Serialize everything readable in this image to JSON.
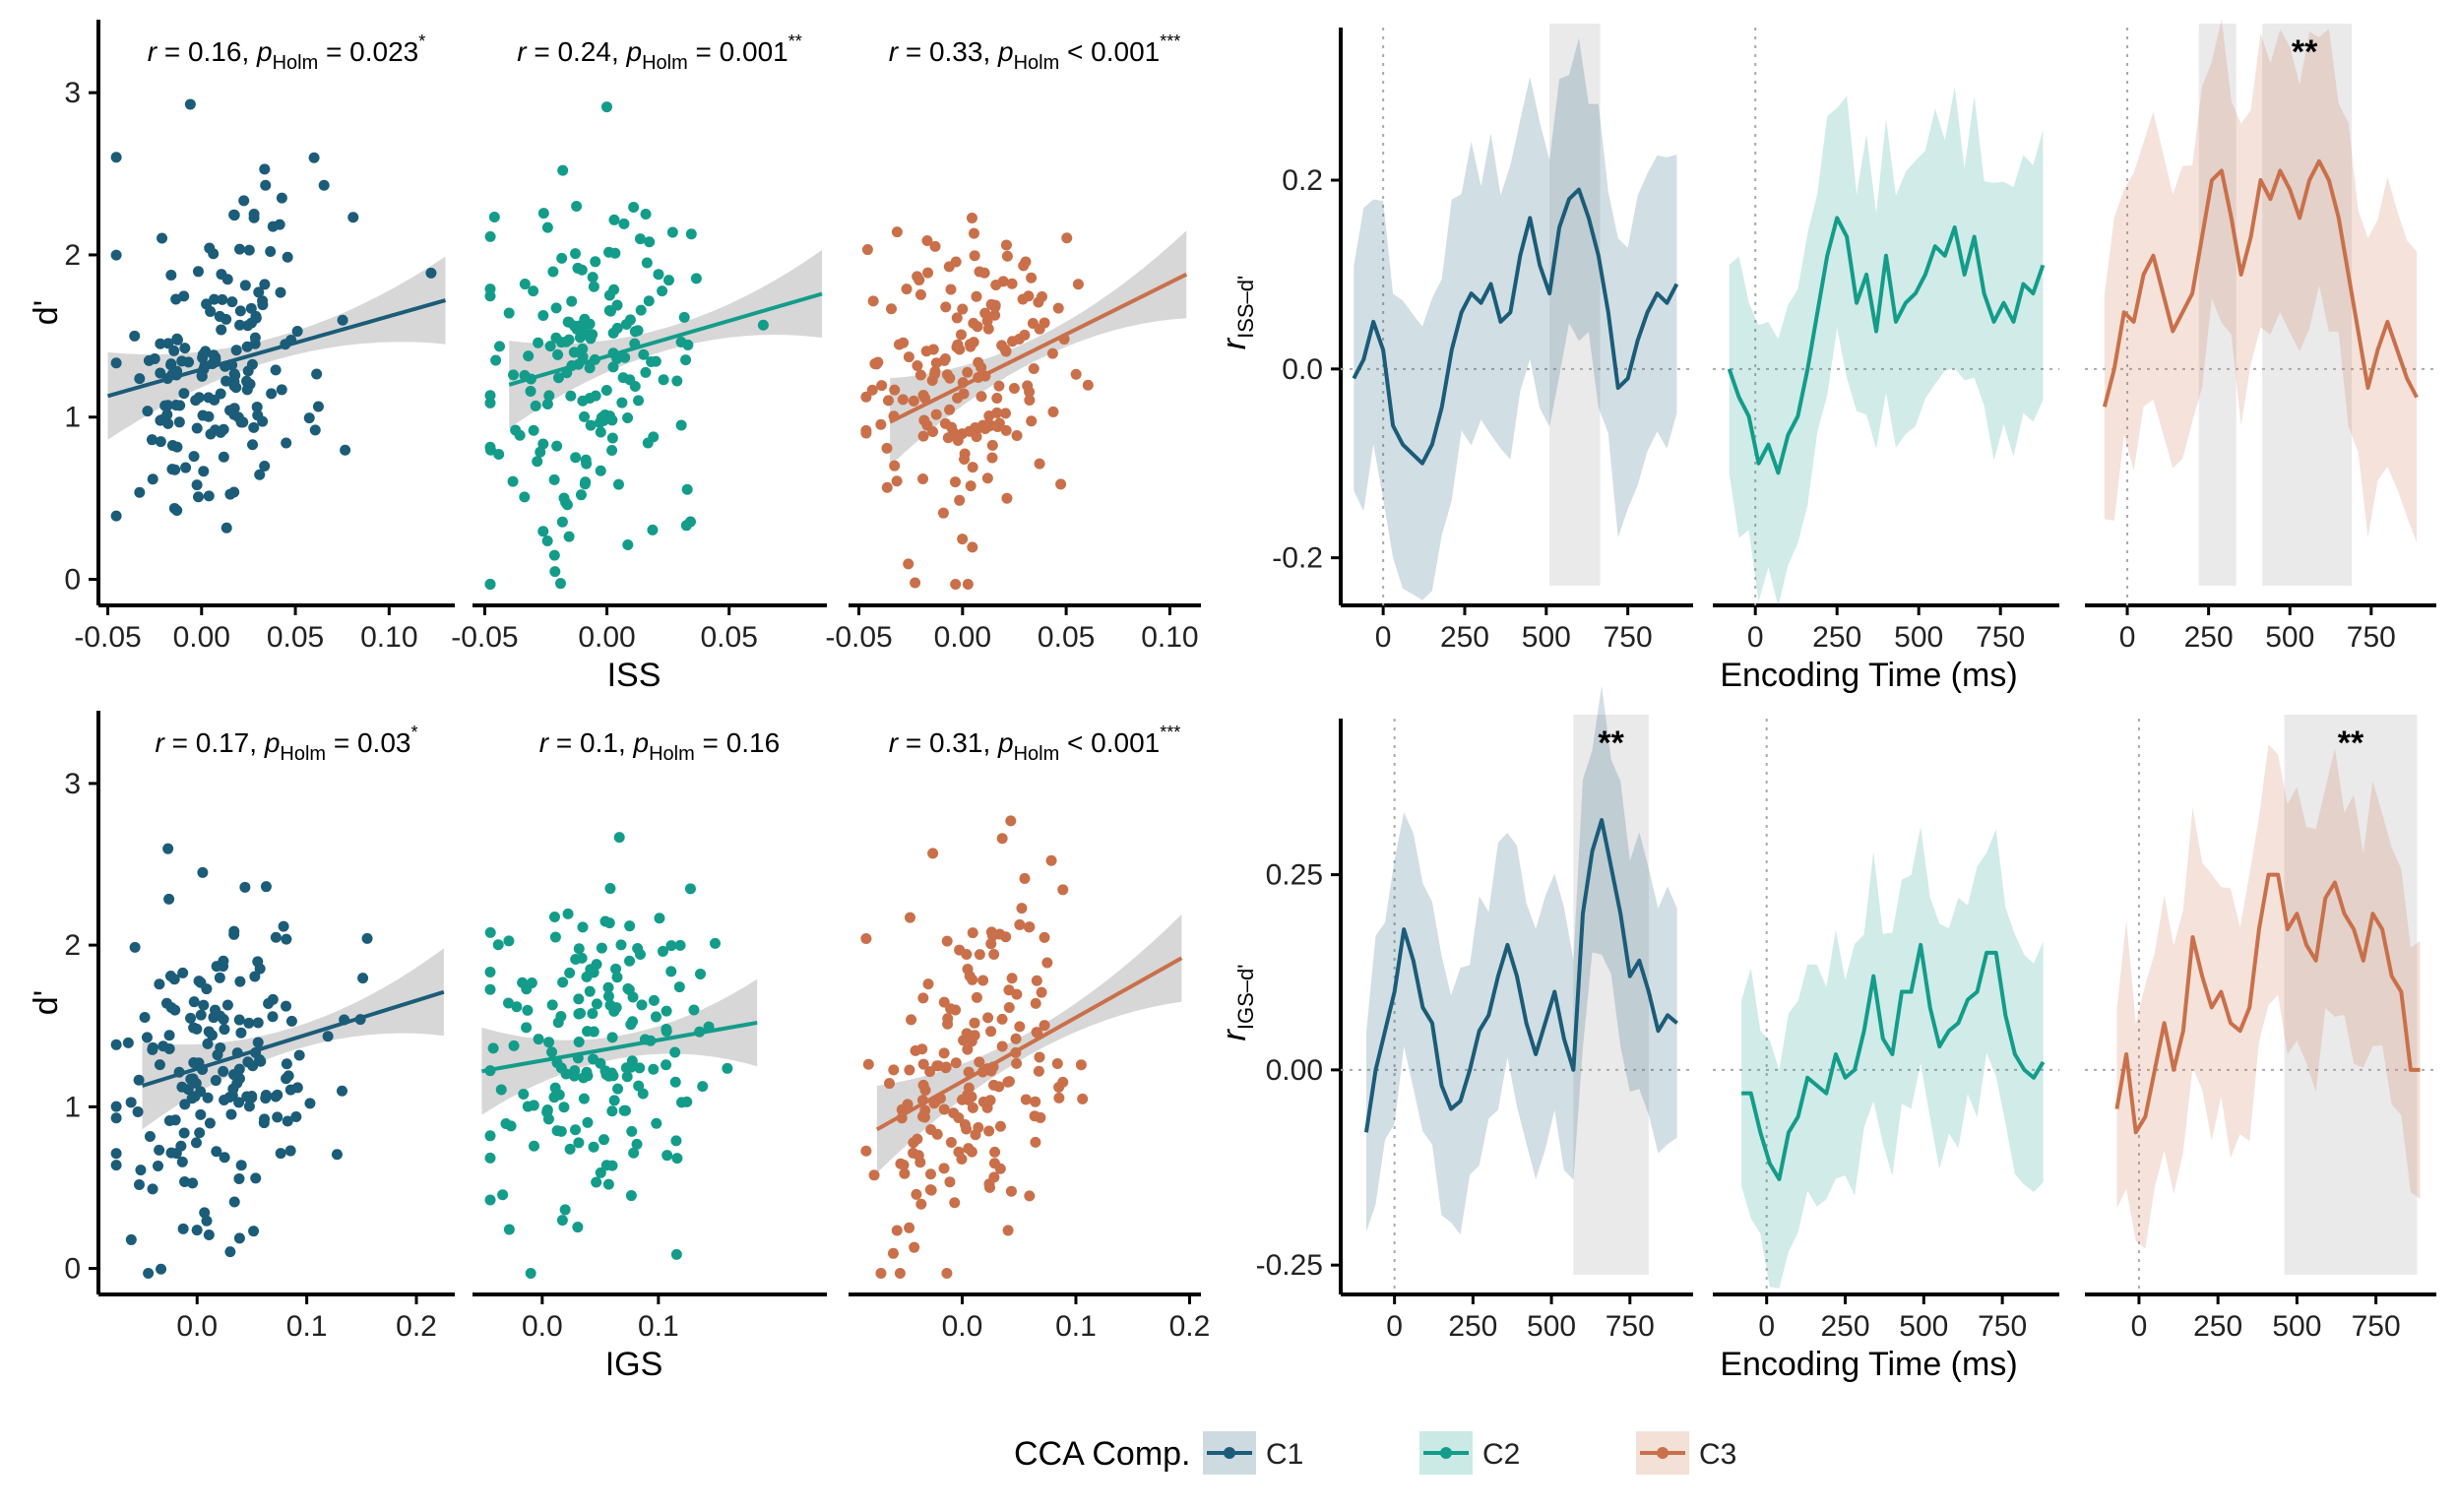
{
  "figure": {
    "legend": {
      "title": "CCA Comp.",
      "entries": [
        {
          "label": "C1",
          "color": "#1b5c78"
        },
        {
          "label": "C2",
          "color": "#139c8a"
        },
        {
          "label": "C3",
          "color": "#c9704a"
        }
      ]
    },
    "panels": [
      {
        "row": "top",
        "scatter": {
          "ylabel": "d'",
          "xlabel": "ISS",
          "ylim": [
            -0.1,
            3.45
          ],
          "yticks": [
            0,
            1,
            2,
            3
          ],
          "subpanels": [
            {
              "comp": "C1",
              "xlim": [
                -0.055,
                0.135
              ],
              "xticks": [
                -0.05,
                0.0,
                0.05,
                0.1
              ],
              "xtick_labels": [
                "-0.05",
                "0.00",
                "0.05",
                "0.10"
              ],
              "fit": {
                "x0": -0.05,
                "y0": 1.13,
                "x1": 0.13,
                "y1": 1.72
              },
              "stat": {
                "r": "0.16",
                "p_sep": "=",
                "p": "0.023",
                "stars": "*"
              }
            },
            {
              "comp": "C2",
              "xlim": [
                -0.055,
                0.09
              ],
              "xticks": [
                -0.05,
                0.0,
                0.05
              ],
              "xtick_labels": [
                "-0.05",
                "0.00",
                "0.05"
              ],
              "fit": {
                "x0": -0.04,
                "y0": 1.2,
                "x1": 0.088,
                "y1": 1.76
              },
              "stat": {
                "r": "0.24",
                "p_sep": "=",
                "p": "0.001",
                "stars": "**"
              }
            },
            {
              "comp": "C3",
              "xlim": [
                -0.055,
                0.115
              ],
              "xticks": [
                -0.05,
                0.0,
                0.05,
                0.1
              ],
              "xtick_labels": [
                "-0.05",
                "0.00",
                "0.05",
                "0.10"
              ],
              "fit": {
                "x0": -0.035,
                "y0": 0.97,
                "x1": 0.108,
                "y1": 1.88
              },
              "stat": {
                "r": "0.33",
                "p_sep": "<",
                "p": "0.001",
                "stars": "***"
              }
            }
          ]
        },
        "timecourse": {
          "ylabel": "r",
          "ylabel_sub": "ISS–d'",
          "xlabel": "Encoding Time (ms)",
          "ylim": [
            -0.24,
            0.37
          ],
          "yticks": [
            -0.2,
            0.0,
            0.2
          ],
          "ytick_labels": [
            "-0.2",
            "0.0",
            "0.2"
          ],
          "xticks": [
            0,
            250,
            500,
            750
          ],
          "xtick_labels": [
            "0",
            "250",
            "500",
            "750"
          ],
          "subpanels": [
            {
              "comp": "C1",
              "xlim": [
                -100,
                920
              ],
              "sig": [
                [
                  510,
                  665
                ]
              ],
              "stars": [],
              "t": [
                -90,
                -60,
                -30,
                0,
                30,
                60,
                90,
                120,
                150,
                180,
                210,
                240,
                270,
                300,
                330,
                360,
                390,
                420,
                450,
                480,
                510,
                540,
                570,
                600,
                630,
                660,
                690,
                720,
                750,
                780,
                810,
                840,
                870,
                900
              ],
              "r": [
                -0.01,
                0.01,
                0.05,
                0.02,
                -0.06,
                -0.08,
                -0.09,
                -0.1,
                -0.08,
                -0.04,
                0.02,
                0.06,
                0.08,
                0.07,
                0.09,
                0.05,
                0.06,
                0.12,
                0.16,
                0.11,
                0.08,
                0.15,
                0.18,
                0.19,
                0.16,
                0.12,
                0.06,
                -0.02,
                -0.01,
                0.03,
                0.06,
                0.08,
                0.07,
                0.09
              ],
              "ci": 0.14
            },
            {
              "comp": "C2",
              "xlim": [
                -100,
                900
              ],
              "sig": [],
              "stars": [],
              "t": [
                -80,
                -50,
                -20,
                10,
                40,
                70,
                100,
                130,
                160,
                190,
                220,
                250,
                280,
                310,
                340,
                370,
                400,
                430,
                460,
                490,
                520,
                550,
                580,
                610,
                640,
                670,
                700,
                730,
                760,
                790,
                820,
                850,
                880
              ],
              "r": [
                0.0,
                -0.03,
                -0.05,
                -0.1,
                -0.08,
                -0.11,
                -0.07,
                -0.05,
                0.0,
                0.06,
                0.12,
                0.16,
                0.14,
                0.07,
                0.1,
                0.04,
                0.12,
                0.05,
                0.07,
                0.08,
                0.1,
                0.13,
                0.12,
                0.15,
                0.1,
                0.14,
                0.08,
                0.05,
                0.07,
                0.05,
                0.09,
                0.08,
                0.11
              ],
              "ci": 0.13
            },
            {
              "comp": "C3",
              "xlim": [
                -100,
                920
              ],
              "sig": [
                [
                  220,
                  335
                ],
                [
                  415,
                  690
                ]
              ],
              "stars": [
                {
                  "x": 545,
                  "label": "**"
                }
              ],
              "t": [
                -70,
                -40,
                -10,
                20,
                50,
                80,
                110,
                140,
                170,
                200,
                230,
                260,
                290,
                320,
                350,
                380,
                410,
                440,
                470,
                500,
                530,
                560,
                590,
                620,
                650,
                680,
                710,
                740,
                770,
                800,
                830,
                860,
                890
              ],
              "r": [
                -0.04,
                0.0,
                0.06,
                0.05,
                0.1,
                0.12,
                0.08,
                0.04,
                0.06,
                0.08,
                0.14,
                0.2,
                0.21,
                0.16,
                0.1,
                0.14,
                0.2,
                0.18,
                0.21,
                0.19,
                0.16,
                0.2,
                0.22,
                0.2,
                0.16,
                0.1,
                0.04,
                -0.02,
                0.02,
                0.05,
                0.02,
                -0.01,
                -0.03
              ],
              "ci": 0.14
            }
          ]
        }
      },
      {
        "row": "bottom",
        "scatter": {
          "ylabel": "d'",
          "xlabel": "IGS",
          "ylim": [
            -0.1,
            3.45
          ],
          "yticks": [
            0,
            1,
            2,
            3
          ],
          "subpanels": [
            {
              "comp": "C1",
              "xlim": [
                -0.09,
                0.235
              ],
              "xticks": [
                0.0,
                0.1,
                0.2
              ],
              "xtick_labels": [
                "0.0",
                "0.1",
                "0.2"
              ],
              "fit": {
                "x0": -0.05,
                "y0": 1.13,
                "x1": 0.225,
                "y1": 1.71
              },
              "stat": {
                "r": "0.17",
                "p_sep": "=",
                "p": "0.03",
                "stars": "*"
              }
            },
            {
              "comp": "C2",
              "xlim": [
                -0.06,
                0.245
              ],
              "xticks": [
                0.0,
                0.1
              ],
              "xtick_labels": [
                "0.0",
                "0.1"
              ],
              "fit": {
                "x0": -0.052,
                "y0": 1.22,
                "x1": 0.185,
                "y1": 1.52
              },
              "stat": {
                "r": "0.1",
                "p_sep": "=",
                "p": "0.16",
                "stars": ""
              }
            },
            {
              "comp": "C3",
              "xlim": [
                -0.1,
                0.21
              ],
              "xticks": [
                0.0,
                0.1,
                0.2
              ],
              "xtick_labels": [
                "0.0",
                "0.1",
                "0.2"
              ],
              "fit": {
                "x0": -0.075,
                "y0": 0.86,
                "x1": 0.193,
                "y1": 1.92
              },
              "stat": {
                "r": "0.31",
                "p_sep": "<",
                "p": "0.001",
                "stars": "***"
              }
            }
          ]
        },
        "timecourse": {
          "ylabel": "r",
          "ylabel_sub": "IGS–d'",
          "xlabel": "Encoding Time (ms)",
          "ylim": [
            -0.275,
            0.46
          ],
          "yticks": [
            -0.25,
            0.0,
            0.25
          ],
          "ytick_labels": [
            "-0.25",
            "0.00",
            "0.25"
          ],
          "xticks": [
            0,
            250,
            500,
            750
          ],
          "xtick_labels": [
            "0",
            "250",
            "500",
            "750"
          ],
          "subpanels": [
            {
              "comp": "C1",
              "xlim": [
                -140,
                920
              ],
              "sig": [
                [
                  570,
                  810
                ]
              ],
              "stars": [
                {
                  "x": 690,
                  "label": "**"
                }
              ],
              "t": [
                -90,
                -60,
                -30,
                0,
                30,
                60,
                90,
                120,
                150,
                180,
                210,
                240,
                270,
                300,
                330,
                360,
                390,
                420,
                450,
                480,
                510,
                540,
                570,
                600,
                630,
                660,
                690,
                720,
                750,
                780,
                810,
                840,
                870,
                900
              ],
              "r": [
                -0.08,
                0.0,
                0.05,
                0.1,
                0.18,
                0.14,
                0.08,
                0.06,
                -0.02,
                -0.05,
                -0.04,
                0.0,
                0.05,
                0.07,
                0.12,
                0.16,
                0.12,
                0.06,
                0.02,
                0.06,
                0.1,
                0.04,
                0.0,
                0.2,
                0.28,
                0.32,
                0.26,
                0.2,
                0.12,
                0.14,
                0.1,
                0.05,
                0.07,
                0.06
              ],
              "ci": 0.15
            },
            {
              "comp": "C2",
              "xlim": [
                -140,
                900
              ],
              "sig": [],
              "stars": [],
              "t": [
                -80,
                -50,
                -20,
                10,
                40,
                70,
                100,
                130,
                160,
                190,
                220,
                250,
                280,
                310,
                340,
                370,
                400,
                430,
                460,
                490,
                520,
                550,
                580,
                610,
                640,
                670,
                700,
                730,
                760,
                790,
                820,
                850,
                880
              ],
              "r": [
                -0.03,
                -0.03,
                -0.08,
                -0.12,
                -0.14,
                -0.08,
                -0.06,
                -0.01,
                -0.02,
                -0.03,
                0.02,
                -0.01,
                0.0,
                0.05,
                0.12,
                0.04,
                0.02,
                0.1,
                0.1,
                0.16,
                0.08,
                0.03,
                0.05,
                0.06,
                0.09,
                0.1,
                0.15,
                0.15,
                0.07,
                0.02,
                0.0,
                -0.01,
                0.01
              ],
              "ci": 0.14
            },
            {
              "comp": "C3",
              "xlim": [
                -140,
                910
              ],
              "sig": [
                [
                  460,
                  880
                ]
              ],
              "stars": [
                {
                  "x": 670,
                  "label": "**"
                }
              ],
              "t": [
                -70,
                -40,
                -10,
                20,
                50,
                80,
                110,
                140,
                170,
                200,
                230,
                260,
                290,
                320,
                350,
                380,
                410,
                440,
                470,
                500,
                530,
                560,
                590,
                620,
                650,
                680,
                710,
                740,
                770,
                800,
                830,
                860,
                890
              ],
              "r": [
                -0.05,
                0.02,
                -0.08,
                -0.06,
                0.0,
                0.06,
                0.0,
                0.05,
                0.17,
                0.12,
                0.08,
                0.1,
                0.06,
                0.05,
                0.08,
                0.18,
                0.25,
                0.25,
                0.18,
                0.2,
                0.16,
                0.14,
                0.22,
                0.24,
                0.2,
                0.18,
                0.14,
                0.2,
                0.18,
                0.12,
                0.1,
                0.0,
                0.0
              ],
              "ci": 0.15
            }
          ]
        }
      }
    ]
  }
}
